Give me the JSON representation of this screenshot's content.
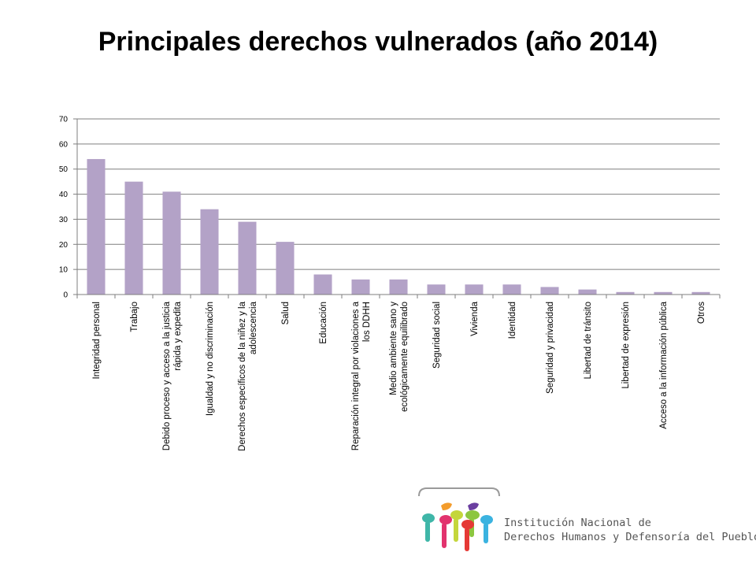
{
  "title": "Principales derechos vulnerados (año 2014)",
  "chart_data": {
    "type": "bar",
    "categories": [
      "Integridad personal",
      "Trabajo",
      "Debido proceso y acceso a la justicia rápida y expedita",
      "Igualdad y no discriminación",
      "Derechos específicos de la niñez y la adolescencia",
      "Salud",
      "Educación",
      "Reparación integral por violaciones a los DDHH",
      "Medio ambiente sano y ecológicamente equilibrado",
      "Seguridad social",
      "Vivienda",
      "Identidad",
      "Seguridad y privacidad",
      "Libertad de tránsito",
      "Libertad de expresión",
      "Acceso a la información pública",
      "Otros"
    ],
    "category_lines": [
      [
        "Integridad personal"
      ],
      [
        "Trabajo"
      ],
      [
        "Debido proceso y acceso a la justicia",
        "rápida y expedita"
      ],
      [
        "Igualdad y no discriminación"
      ],
      [
        "Derechos específicos de la niñez y la",
        "adolescencia"
      ],
      [
        "Salud"
      ],
      [
        "Educación"
      ],
      [
        "Reparación integral por violaciones a",
        "los DDHH"
      ],
      [
        "Medio ambiente sano y",
        "ecológicamente equilibrado"
      ],
      [
        "Seguridad social"
      ],
      [
        "Vivienda"
      ],
      [
        "Identidad"
      ],
      [
        "Seguridad y privacidad"
      ],
      [
        "Libertad de tránsito"
      ],
      [
        "Libertad de expresión"
      ],
      [
        "Acceso a la información pública"
      ],
      [
        "Otros"
      ]
    ],
    "values": [
      54,
      45,
      41,
      34,
      29,
      21,
      8,
      6,
      6,
      4,
      4,
      4,
      3,
      2,
      1,
      1,
      1
    ],
    "ylim": [
      0,
      70
    ],
    "yticks": [
      0,
      10,
      20,
      30,
      40,
      50,
      60,
      70
    ],
    "grid": true,
    "bar_color": "#b3a2c7"
  },
  "logo": {
    "line1": "Institución Nacional de",
    "line2": "Derechos Humanos y Defensoría del Pueblo"
  }
}
